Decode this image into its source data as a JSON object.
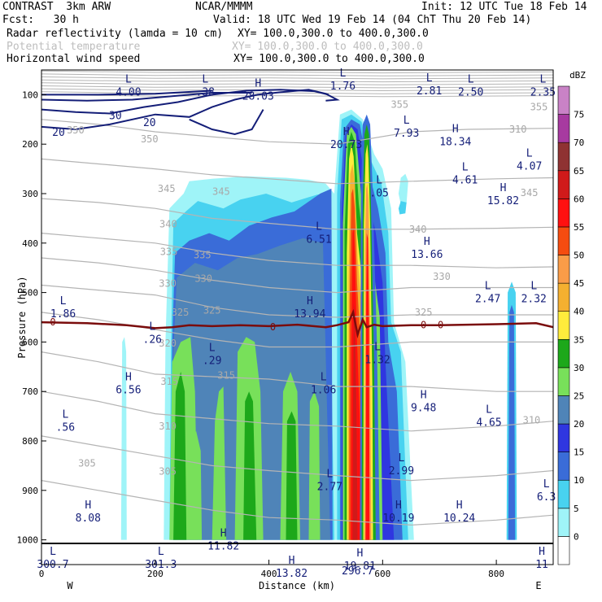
{
  "header": {
    "model": "CONTRAST  3km ARW",
    "center": "NCAR/MMMM",
    "init": "Init: 12 UTC Tue 18 Feb 14",
    "fcst": "Fcst:   30 h",
    "valid": "Valid: 18 UTC Wed 19 Feb 14 (04 ChT Thu 20 Feb 14)",
    "field1": "Radar reflectivity (lamda = 10 cm)",
    "field1_xy": "XY= 100.0,300.0 to 400.0,300.0",
    "field2": "Potential temperature",
    "field2_xy": "XY= 100.0,300.0 to 400.0,300.0",
    "field3": "Horizontal wind speed",
    "field3_xy": "XY= 100.0,300.0 to 400.0,300.0"
  },
  "colors": {
    "reflectivity": [
      "#ffffff",
      "#9ff4f8",
      "#48d2f0",
      "#3a6cd8",
      "#2f36e0",
      "#4f84b8",
      "#78e05a",
      "#1da81a",
      "#ffec3c",
      "#f4b030",
      "#fa9c48",
      "#f54c10",
      "#ff1010",
      "#d01a1a",
      "#8f3232",
      "#a73aa0",
      "#c982c6"
    ],
    "theta": "#b4b4b4",
    "wind": "#141e78",
    "zero_isotherm": "#7a0c0c"
  },
  "chart_data": {
    "type": "heatmap",
    "x_axis": {
      "label": "Distance (km)",
      "range": [
        0,
        900
      ],
      "ticks": [
        0,
        200,
        400,
        600,
        800
      ],
      "left_end": "W",
      "right_end": "E"
    },
    "y_axis": {
      "label": "Pressure (hPa)",
      "range": [
        1050,
        50
      ],
      "scale": "linear",
      "ticks": [
        100,
        200,
        300,
        400,
        500,
        600,
        700,
        800,
        900,
        1000
      ]
    },
    "colorbar": {
      "unit": "dBZ",
      "levels": [
        0,
        5,
        10,
        15,
        20,
        25,
        30,
        35,
        40,
        45,
        50,
        55,
        60,
        65,
        70,
        75
      ]
    },
    "reflectivity_cells": [
      {
        "x": [
          220,
          520
        ],
        "top": 260,
        "max_dbz": 30
      },
      {
        "x": [
          520,
          610
        ],
        "top": 130,
        "max_dbz": 60
      },
      {
        "x": [
          820,
          835
        ],
        "top": 480,
        "max_dbz": 20
      },
      {
        "x": [
          140,
          150
        ],
        "top": 590,
        "max_dbz": 5
      }
    ],
    "theta_contour_labels": [
      {
        "text": "355",
        "x": 630,
        "p": 120
      },
      {
        "text": "355",
        "x": 875,
        "p": 125
      },
      {
        "text": "350",
        "x": 190,
        "p": 190
      },
      {
        "text": "350",
        "x": 60,
        "p": 172
      },
      {
        "text": "345",
        "x": 220,
        "p": 290
      },
      {
        "text": "345",
        "x": 316,
        "p": 296
      },
      {
        "text": "340",
        "x": 223,
        "p": 362
      },
      {
        "text": "340",
        "x": 662,
        "p": 372
      },
      {
        "text": "335",
        "x": 224,
        "p": 418
      },
      {
        "text": "335",
        "x": 283,
        "p": 424
      },
      {
        "text": "330",
        "x": 222,
        "p": 482
      },
      {
        "text": "330",
        "x": 285,
        "p": 472
      },
      {
        "text": "330",
        "x": 704,
        "p": 468
      },
      {
        "text": "325",
        "x": 244,
        "p": 540
      },
      {
        "text": "325",
        "x": 300,
        "p": 536
      },
      {
        "text": "325",
        "x": 672,
        "p": 540
      },
      {
        "text": "320",
        "x": 222,
        "p": 603
      },
      {
        "text": "315",
        "x": 225,
        "p": 680
      },
      {
        "text": "315",
        "x": 325,
        "p": 668
      },
      {
        "text": "310",
        "x": 222,
        "p": 770
      },
      {
        "text": "310",
        "x": 862,
        "p": 758
      },
      {
        "text": "305",
        "x": 80,
        "p": 845
      },
      {
        "text": "305",
        "x": 222,
        "p": 862
      },
      {
        "text": "310",
        "x": 838,
        "p": 170
      },
      {
        "text": "345",
        "x": 858,
        "p": 298
      }
    ],
    "wind_contour_labels": [
      {
        "text": "30",
        "x": 130,
        "p": 143
      },
      {
        "text": "20",
        "x": 190,
        "p": 157
      },
      {
        "text": "20",
        "x": 30,
        "p": 177
      }
    ],
    "zero_isotherm_labels": [
      {
        "text": "0",
        "x": 20,
        "p": 560
      },
      {
        "text": "0",
        "x": 407,
        "p": 570
      },
      {
        "text": "0",
        "x": 672,
        "p": 566
      },
      {
        "text": "0",
        "x": 702,
        "p": 566
      }
    ],
    "extrema": [
      {
        "type": "L",
        "value": "4.00",
        "x": 153,
        "p": 82
      },
      {
        "type": "L",
        "value": ".38",
        "x": 288,
        "p": 82
      },
      {
        "type": "H",
        "value": "28.03",
        "x": 381,
        "p": 90
      },
      {
        "type": "L",
        "value": "1.76",
        "x": 530,
        "p": 70
      },
      {
        "type": "L",
        "value": "2.81",
        "x": 682,
        "p": 80
      },
      {
        "type": "L",
        "value": "2.50",
        "x": 755,
        "p": 82
      },
      {
        "type": "L",
        "value": "2.35",
        "x": 882,
        "p": 82
      },
      {
        "type": "L",
        "value": "7.93",
        "x": 642,
        "p": 165
      },
      {
        "type": "H",
        "value": "18.34",
        "x": 728,
        "p": 182
      },
      {
        "type": "H",
        "value": "20.73",
        "x": 536,
        "p": 188
      },
      {
        "type": "L",
        "value": "4.07",
        "x": 858,
        "p": 232
      },
      {
        "type": "L",
        "value": "4.61",
        "x": 745,
        "p": 260
      },
      {
        "type": "L",
        "value": ".05",
        "x": 594,
        "p": 286
      },
      {
        "type": "H",
        "value": "15.82",
        "x": 812,
        "p": 302
      },
      {
        "type": "L",
        "value": "6.51",
        "x": 488,
        "p": 380
      },
      {
        "type": "H",
        "value": "13.66",
        "x": 678,
        "p": 410
      },
      {
        "type": "L",
        "value": "2.47",
        "x": 785,
        "p": 500
      },
      {
        "type": "L",
        "value": "2.32",
        "x": 866,
        "p": 500
      },
      {
        "type": "L",
        "value": "1.86",
        "x": 38,
        "p": 530
      },
      {
        "type": "H",
        "value": "13.94",
        "x": 472,
        "p": 530
      },
      {
        "type": "L",
        "value": ".26",
        "x": 195,
        "p": 582
      },
      {
        "type": "L",
        "value": ".29",
        "x": 300,
        "p": 625
      },
      {
        "type": "L",
        "value": "1.32",
        "x": 591,
        "p": 623
      },
      {
        "type": "H",
        "value": "6.56",
        "x": 153,
        "p": 684
      },
      {
        "type": "L",
        "value": "1.06",
        "x": 496,
        "p": 684
      },
      {
        "type": "H",
        "value": "9.48",
        "x": 672,
        "p": 720
      },
      {
        "type": "L",
        "value": ".56",
        "x": 42,
        "p": 760
      },
      {
        "type": "L",
        "value": "4.65",
        "x": 787,
        "p": 750
      },
      {
        "type": "L",
        "value": "2.99",
        "x": 633,
        "p": 848
      },
      {
        "type": "L",
        "value": "2.77",
        "x": 507,
        "p": 880
      },
      {
        "type": "L",
        "value": "6.3",
        "x": 888,
        "p": 900
      },
      {
        "type": "H",
        "value": "8.08",
        "x": 82,
        "p": 943
      },
      {
        "type": "H",
        "value": "10.19",
        "x": 628,
        "p": 943
      },
      {
        "type": "H",
        "value": "10.24",
        "x": 735,
        "p": 943
      },
      {
        "type": "H",
        "value": "11.82",
        "x": 320,
        "p": 1000
      },
      {
        "type": "L",
        "value": "301.3",
        "x": 210,
        "p": 1037
      },
      {
        "type": "L",
        "value": "300.7",
        "x": 20,
        "p": 1037
      },
      {
        "type": "H",
        "value": "13.82",
        "x": 440,
        "p": 1055
      },
      {
        "type": "H",
        "value": "19.81",
        "x": 560,
        "p": 1040
      },
      {
        "type": "H",
        "value": "11",
        "x": 880,
        "p": 1037
      },
      {
        "type": "",
        "value": "296.7",
        "x": 556,
        "p": 1050
      }
    ]
  }
}
